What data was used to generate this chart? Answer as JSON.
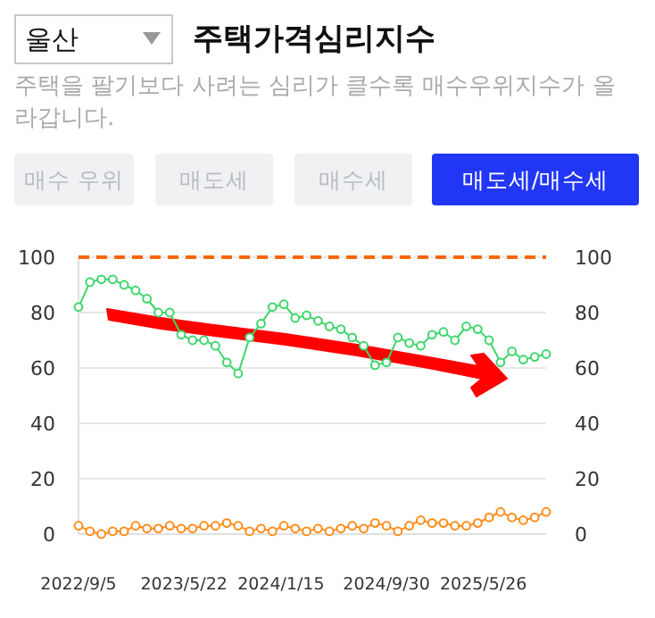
{
  "chart_data": {
    "type": "line",
    "title": "주택가격심리지수",
    "subtitle": "주택을 팔기보다 사려는 심리가 클수록 매수우위지수가 올라갑니다.",
    "annotations": [
      "울산",
      "매수 우위",
      "매도세",
      "매수세",
      "매도세/매수세"
    ],
    "x": [
      "2022-09-05",
      "2022-10-03",
      "2022-10-31",
      "2022-11-28",
      "2022-12-26",
      "2023-01-23",
      "2023-02-20",
      "2023-03-20",
      "2023-04-17",
      "2023-05-15",
      "2023-06-12",
      "2023-07-10",
      "2023-08-07",
      "2023-09-04",
      "2023-10-02",
      "2023-10-30",
      "2023-11-27",
      "2023-12-25",
      "2024-01-22",
      "2024-02-19",
      "2024-03-18",
      "2024-04-15",
      "2024-05-13",
      "2024-06-10",
      "2024-07-08",
      "2024-08-05",
      "2024-09-02",
      "2024-09-30",
      "2024-10-28",
      "2024-11-25",
      "2024-12-23",
      "2025-01-20",
      "2025-02-17",
      "2025-03-17",
      "2025-04-14",
      "2025-05-12",
      "2025-06-09",
      "2025-07-07",
      "2025-08-04",
      "2025-09-01",
      "2025-09-29",
      "2025-10-27"
    ],
    "series": [
      {
        "color": "#3dd66b",
        "values": [
          82,
          91,
          92,
          92,
          90,
          88,
          85,
          80,
          80,
          72,
          70,
          70,
          68,
          62,
          58,
          71,
          76,
          82,
          83,
          78,
          79,
          77,
          75,
          74,
          71,
          68,
          61,
          62,
          71,
          69,
          68,
          72,
          73,
          70,
          75,
          74,
          70,
          62,
          66,
          63,
          64,
          65
        ]
      },
      {
        "color": "#ff8c1a",
        "values": [
          3,
          1,
          0,
          1,
          1,
          3,
          2,
          2,
          3,
          2,
          2,
          3,
          3,
          4,
          3,
          1,
          2,
          1,
          3,
          2,
          1,
          2,
          1,
          2,
          3,
          2,
          4,
          3,
          1,
          3,
          5,
          4,
          4,
          3,
          3,
          4,
          6,
          8,
          6,
          5,
          6,
          8
        ]
      }
    ],
    "xlim": [
      "2022-09-05",
      "2025-10-27"
    ],
    "xticks": [
      {
        "value": "2022-09-05",
        "label": "2022/9/5"
      },
      {
        "value": "2023-05-22",
        "label": "2023/5/22"
      },
      {
        "value": "2024-01-15",
        "label": "2024/1/15"
      },
      {
        "value": "2024-09-30",
        "label": "2024/9/30"
      },
      {
        "value": "2025-05-26",
        "label": "2025/5/26"
      }
    ],
    "ylim": [
      0,
      100
    ],
    "yticks": [
      0,
      20,
      40,
      60,
      80,
      100
    ],
    "y2lim": [
      0,
      100
    ],
    "y2ticks": [
      0,
      20,
      40,
      60,
      80,
      100
    ],
    "ref_lines": [
      {
        "axis": "y",
        "value": 100,
        "color": "#ff6600",
        "line_style": "dashed"
      }
    ],
    "grid": "y",
    "marker": "circle",
    "line_style": "solid"
  }
}
